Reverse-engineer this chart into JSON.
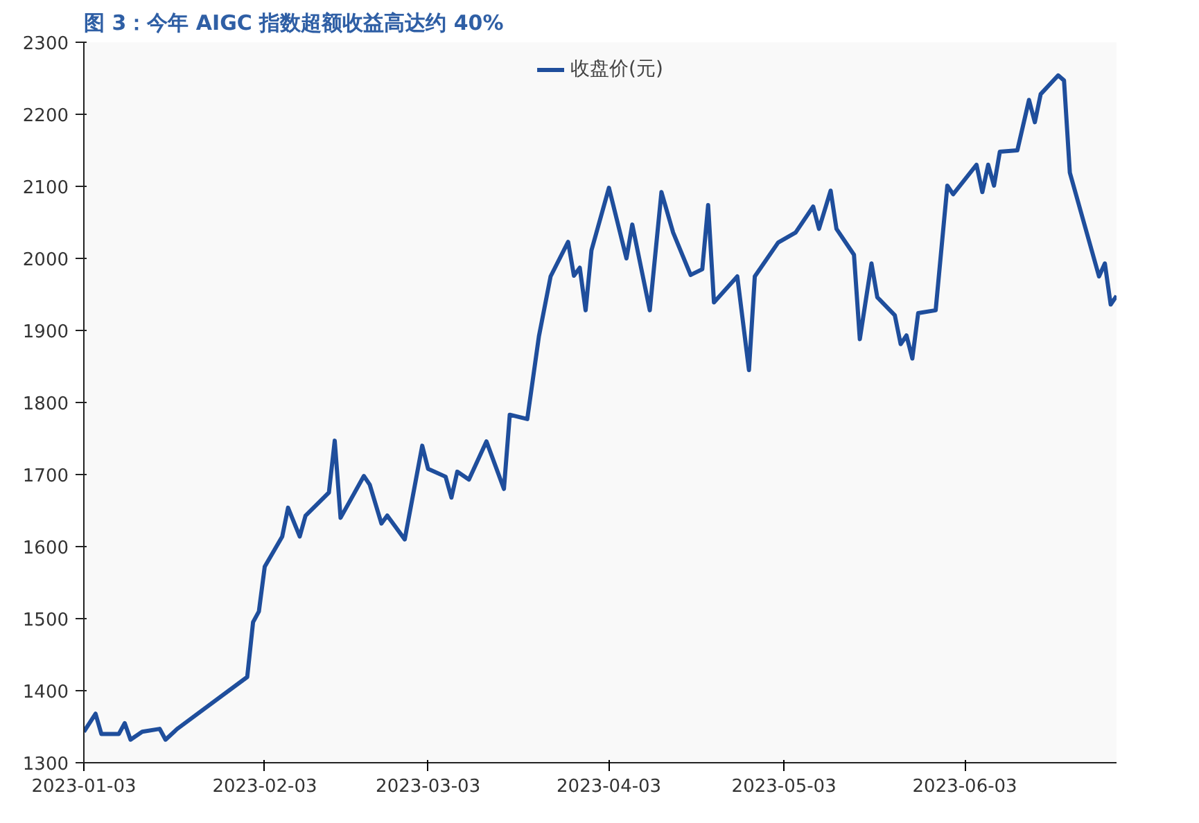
{
  "chart_data": {
    "type": "line",
    "title": "图 3：今年 AIGC 指数超额收益高达约 40%",
    "x": [
      "2023-01-03",
      "2023-01-05",
      "2023-01-06",
      "2023-01-09",
      "2023-01-10",
      "2023-01-11",
      "2023-01-13",
      "2023-01-16",
      "2023-01-17",
      "2023-01-19",
      "2023-01-31",
      "2023-02-01",
      "2023-02-02",
      "2023-02-03",
      "2023-02-06",
      "2023-02-07",
      "2023-02-09",
      "2023-02-10",
      "2023-02-14",
      "2023-02-15",
      "2023-02-16",
      "2023-02-20",
      "2023-02-21",
      "2023-02-23",
      "2023-02-24",
      "2023-02-27",
      "2023-03-02",
      "2023-03-03",
      "2023-03-06",
      "2023-03-07",
      "2023-03-08",
      "2023-03-10",
      "2023-03-13",
      "2023-03-16",
      "2023-03-17",
      "2023-03-20",
      "2023-03-22",
      "2023-03-24",
      "2023-03-27",
      "2023-03-28",
      "2023-03-29",
      "2023-03-30",
      "2023-03-31",
      "2023-04-03",
      "2023-04-06",
      "2023-04-07",
      "2023-04-10",
      "2023-04-12",
      "2023-04-14",
      "2023-04-17",
      "2023-04-19",
      "2023-04-20",
      "2023-04-21",
      "2023-04-25",
      "2023-04-27",
      "2023-04-28",
      "2023-05-02",
      "2023-05-05",
      "2023-05-08",
      "2023-05-09",
      "2023-05-11",
      "2023-05-12",
      "2023-05-15",
      "2023-05-16",
      "2023-05-18",
      "2023-05-19",
      "2023-05-22",
      "2023-05-23",
      "2023-05-24",
      "2023-05-25",
      "2023-05-26",
      "2023-05-29",
      "2023-05-31",
      "2023-06-01",
      "2023-06-05",
      "2023-06-06",
      "2023-06-07",
      "2023-06-08",
      "2023-06-09",
      "2023-06-12",
      "2023-06-14",
      "2023-06-15",
      "2023-06-16",
      "2023-06-19",
      "2023-06-20",
      "2023-06-21",
      "2023-06-26",
      "2023-06-27",
      "2023-06-28",
      "2023-06-29"
    ],
    "series": [
      {
        "name": "收盘价(元)",
        "color": "#1f4e9c",
        "values": [
          1343,
          1368,
          1340,
          1340,
          1355,
          1332,
          1343,
          1347,
          1332,
          1347,
          1419,
          1495,
          1510,
          1572,
          1614,
          1654,
          1614,
          1643,
          1675,
          1747,
          1640,
          1698,
          1686,
          1632,
          1643,
          1610,
          1740,
          1708,
          1697,
          1668,
          1704,
          1693,
          1746,
          1680,
          1783,
          1777,
          1892,
          1975,
          2023,
          1976,
          1987,
          1928,
          2011,
          2098,
          2000,
          2047,
          1928,
          2092,
          2036,
          1977,
          1985,
          2074,
          1939,
          1975,
          1845,
          1975,
          2022,
          2036,
          2072,
          2041,
          2094,
          2041,
          2005,
          1888,
          1993,
          1946,
          1921,
          1881,
          1893,
          1861,
          1924,
          1928,
          2101,
          2089,
          2130,
          2092,
          2130,
          2101,
          2148,
          2150,
          2220,
          2189,
          2228,
          2254,
          2247,
          2119,
          1975,
          1993,
          1936,
          1948
        ]
      }
    ],
    "xlim": [
      "2023-01-03",
      "2023-06-29"
    ],
    "xticks": [
      "2023-01-03",
      "2023-02-03",
      "2023-03-03",
      "2023-04-03",
      "2023-05-03",
      "2023-06-03"
    ],
    "ylim": [
      1300,
      2300
    ],
    "yticks": [
      1300,
      1400,
      1500,
      1600,
      1700,
      1800,
      1900,
      2000,
      2100,
      2200,
      2300
    ],
    "legend": "top",
    "grid": false,
    "marker": "none",
    "line_style": "solid"
  }
}
